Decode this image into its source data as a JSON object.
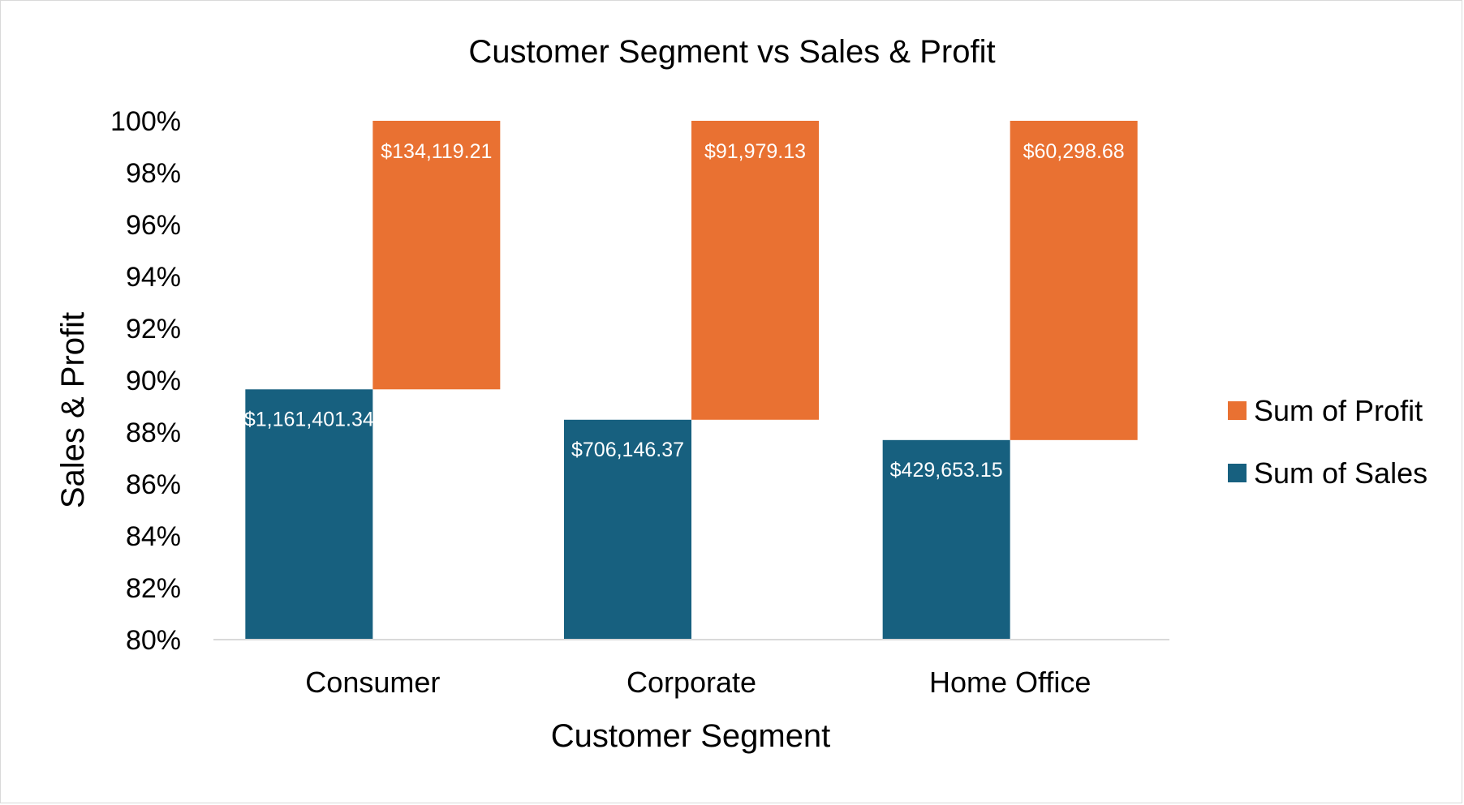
{
  "chart_data": {
    "type": "bar",
    "stacking": "percent",
    "title": "Customer Segment vs Sales & Profit",
    "xlabel": "Customer Segment",
    "ylabel": "Sales & Profit",
    "ylim": [
      80,
      100
    ],
    "yticks": [
      "80%",
      "82%",
      "84%",
      "86%",
      "88%",
      "90%",
      "92%",
      "94%",
      "96%",
      "98%",
      "100%"
    ],
    "categories": [
      "Consumer",
      "Corporate",
      "Home Office"
    ],
    "series": [
      {
        "name": "Sum of Sales",
        "color": "#17607f",
        "values": [
          1161401.34,
          706146.37,
          429653.15
        ],
        "labels": [
          "$1,161,401.34",
          "$706,146.37",
          "$429,653.15"
        ]
      },
      {
        "name": "Sum of Profit",
        "color": "#e97132",
        "values": [
          134119.21,
          91979.13,
          60298.68
        ],
        "labels": [
          "$134,119.21",
          "$91,979.13",
          "$60,298.68"
        ]
      }
    ],
    "legend": {
      "position": "right",
      "entries": [
        "Sum of Profit",
        "Sum of Sales"
      ]
    },
    "grid": false
  }
}
